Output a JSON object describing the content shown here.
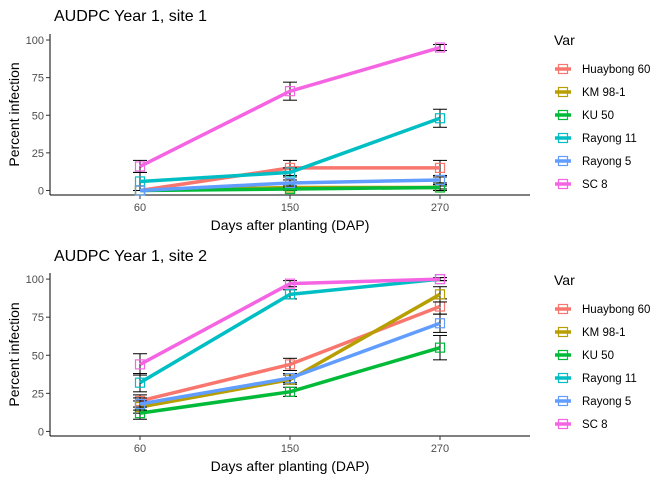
{
  "chart_data": [
    {
      "type": "line",
      "title": "AUDPC Year 1, site 1",
      "xlabel": "Days after planting (DAP)",
      "ylabel": "Percent infection",
      "categories": [
        "60",
        "150",
        "270"
      ],
      "ylim": [
        -3,
        104
      ],
      "yticks": [
        0,
        25,
        50,
        75,
        100
      ],
      "grid": false,
      "legend": {
        "title": "Var",
        "position": "right"
      },
      "series": [
        {
          "name": "Huaybong 60",
          "color": "#F8766D",
          "values": [
            0,
            15,
            15
          ],
          "err": [
            0,
            5,
            5
          ]
        },
        {
          "name": "KM 98-1",
          "color": "#B79F00",
          "values": [
            0,
            2,
            2
          ],
          "err": [
            0,
            1,
            1
          ]
        },
        {
          "name": "KU 50",
          "color": "#00BA38",
          "values": [
            0,
            1,
            2
          ],
          "err": [
            0,
            1,
            2
          ]
        },
        {
          "name": "Rayong 11",
          "color": "#00BFC4",
          "values": [
            6,
            12,
            48
          ],
          "err": [
            6,
            3,
            6
          ]
        },
        {
          "name": "Rayong 5",
          "color": "#619CFF",
          "values": [
            0,
            5,
            7
          ],
          "err": [
            0,
            2,
            2
          ]
        },
        {
          "name": "SC 8",
          "color": "#F564E3",
          "values": [
            16,
            66,
            95
          ],
          "err": [
            4,
            6,
            2
          ]
        }
      ]
    },
    {
      "type": "line",
      "title": "AUDPC Year 1, site 2",
      "xlabel": "Days after planting (DAP)",
      "ylabel": "Percent infection",
      "categories": [
        "60",
        "150",
        "270"
      ],
      "ylim": [
        -3,
        104
      ],
      "yticks": [
        0,
        25,
        50,
        75,
        100
      ],
      "grid": false,
      "legend": {
        "title": "Var",
        "position": "right"
      },
      "series": [
        {
          "name": "Huaybong 60",
          "color": "#F8766D",
          "values": [
            20,
            44,
            82
          ],
          "err": [
            4,
            4,
            5
          ]
        },
        {
          "name": "KM 98-1",
          "color": "#B79F00",
          "values": [
            16,
            34,
            90
          ],
          "err": [
            4,
            3,
            5
          ]
        },
        {
          "name": "KU 50",
          "color": "#00BA38",
          "values": [
            12,
            26,
            55
          ],
          "err": [
            4,
            3,
            8
          ]
        },
        {
          "name": "Rayong 11",
          "color": "#00BFC4",
          "values": [
            32,
            90,
            100
          ],
          "err": [
            6,
            3,
            1
          ]
        },
        {
          "name": "Rayong 5",
          "color": "#619CFF",
          "values": [
            18,
            35,
            71
          ],
          "err": [
            4,
            3,
            6
          ]
        },
        {
          "name": "SC 8",
          "color": "#F564E3",
          "values": [
            44,
            97,
            100
          ],
          "err": [
            7,
            2,
            1
          ]
        }
      ]
    }
  ]
}
